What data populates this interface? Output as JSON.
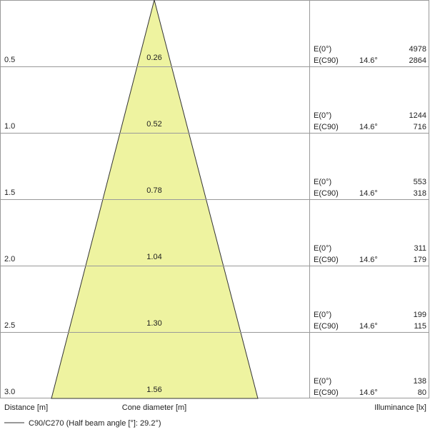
{
  "rows": [
    {
      "distance": "0.5",
      "diameter": "0.26",
      "e0_label": "E(0°)",
      "e0": "4978",
      "ec90_label": "E(C90)",
      "angle": "14.6°",
      "ec90": "2864"
    },
    {
      "distance": "1.0",
      "diameter": "0.52",
      "e0_label": "E(0°)",
      "e0": "1244",
      "ec90_label": "E(C90)",
      "angle": "14.6°",
      "ec90": "716"
    },
    {
      "distance": "1.5",
      "diameter": "0.78",
      "e0_label": "E(0°)",
      "e0": "553",
      "ec90_label": "E(C90)",
      "angle": "14.6°",
      "ec90": "318"
    },
    {
      "distance": "2.0",
      "diameter": "1.04",
      "e0_label": "E(0°)",
      "e0": "311",
      "ec90_label": "E(C90)",
      "angle": "14.6°",
      "ec90": "179"
    },
    {
      "distance": "2.5",
      "diameter": "1.30",
      "e0_label": "E(0°)",
      "e0": "199",
      "ec90_label": "E(C90)",
      "angle": "14.6°",
      "ec90": "115"
    },
    {
      "distance": "3.0",
      "diameter": "1.56",
      "e0_label": "E(0°)",
      "e0": "138",
      "ec90_label": "E(C90)",
      "angle": "14.6°",
      "ec90": "80"
    }
  ],
  "axis_labels": {
    "distance": "Distance [m]",
    "diameter": "Cone diameter [m]",
    "illuminance": "Illuminance [lx]"
  },
  "legend": "C90/C270 (Half beam angle [°]: 29.2°)"
}
